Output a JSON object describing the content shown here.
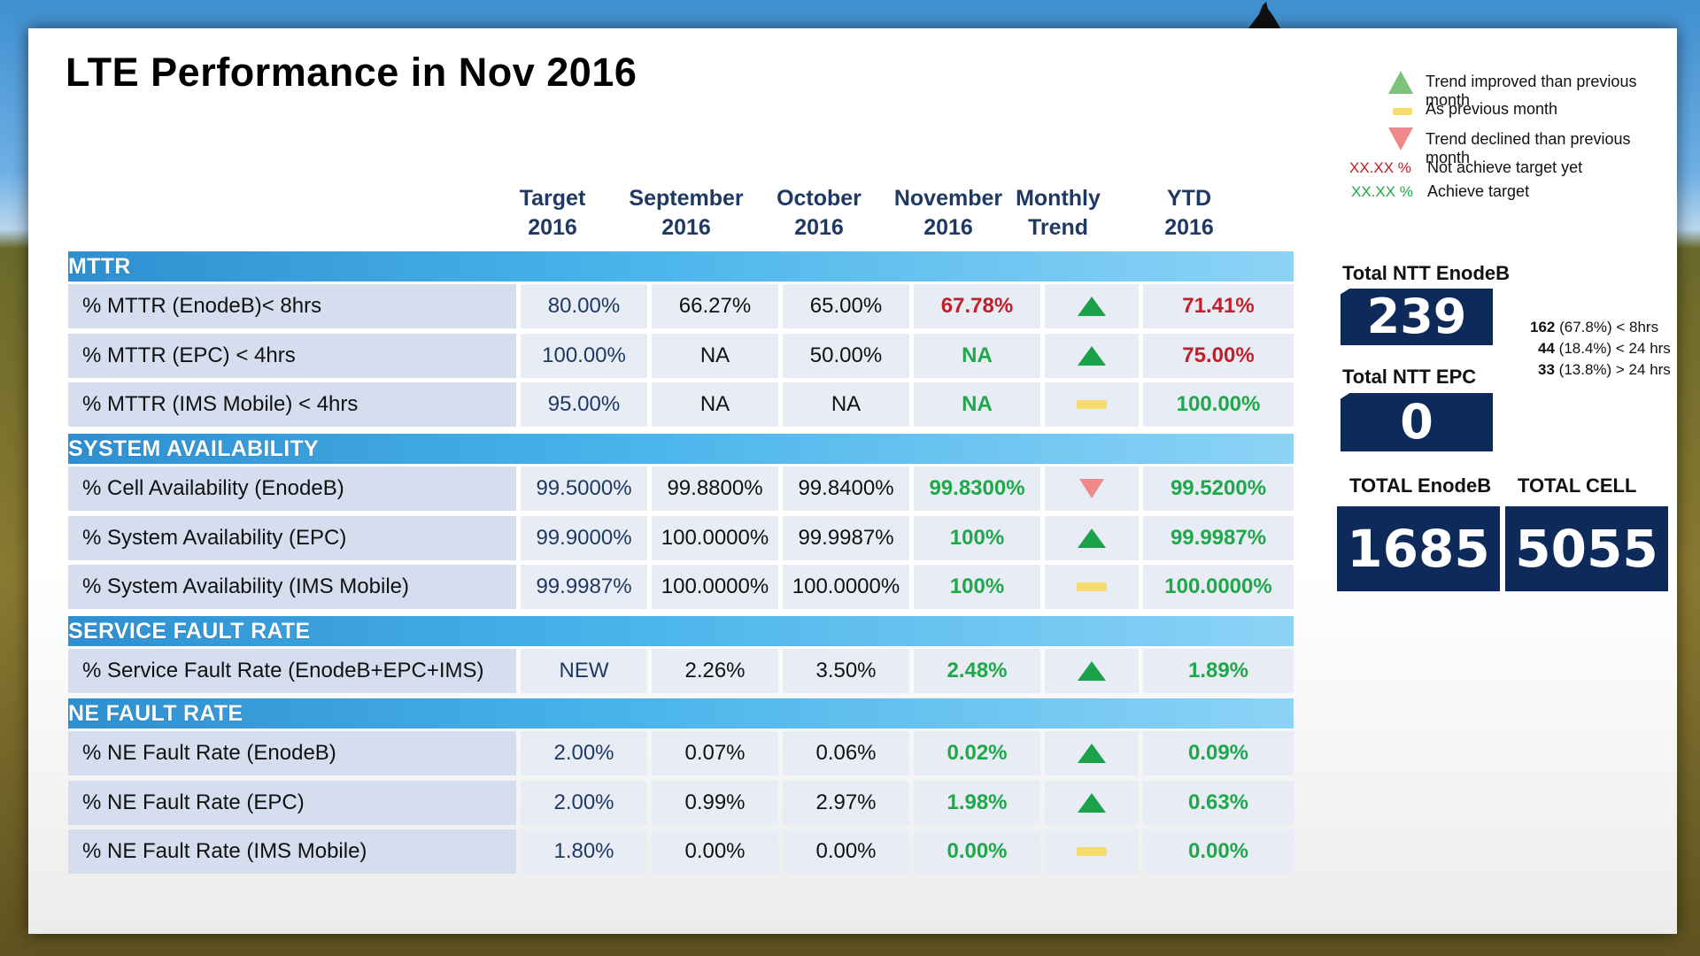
{
  "title": "LTE Performance in Nov 2016",
  "legend": {
    "improved": "Trend improved than previous month",
    "same": "As previous month",
    "declined": "Trend declined than previous month",
    "not_achieve_sample": "XX.XX %",
    "not_achieve": "Not achieve target yet",
    "achieve_sample": "XX.XX %",
    "achieve": "Achieve target"
  },
  "columns": {
    "target": [
      "Target",
      "2016"
    ],
    "sep": [
      "September",
      "2016"
    ],
    "oct": [
      "October",
      "2016"
    ],
    "nov": [
      "November",
      "2016"
    ],
    "trend": [
      "Monthly",
      "Trend"
    ],
    "ytd": [
      "YTD",
      "2016"
    ]
  },
  "sections": [
    {
      "name": "MTTR",
      "rows": [
        {
          "label": "% MTTR (EnodeB)< 8hrs",
          "target": "80.00%",
          "sep": "66.27%",
          "oct": "65.00%",
          "nov": "67.78%",
          "nov_status": "red",
          "trend": "up",
          "ytd": "71.41%",
          "ytd_status": "red"
        },
        {
          "label": "% MTTR (EPC) < 4hrs",
          "target": "100.00%",
          "sep": "NA",
          "oct": "50.00%",
          "nov": "NA",
          "nov_status": "green",
          "trend": "up",
          "ytd": "75.00%",
          "ytd_status": "red"
        },
        {
          "label": "% MTTR (IMS Mobile) < 4hrs",
          "target": "95.00%",
          "sep": "NA",
          "oct": "NA",
          "nov": "NA",
          "nov_status": "green",
          "trend": "same",
          "ytd": "100.00%",
          "ytd_status": "green"
        }
      ]
    },
    {
      "name": "SYSTEM AVAILABILITY",
      "rows": [
        {
          "label": "% Cell Availability (EnodeB)",
          "target": "99.5000%",
          "sep": "99.8800%",
          "oct": "99.8400%",
          "nov": "99.8300%",
          "nov_status": "green",
          "trend": "down",
          "ytd": "99.5200%",
          "ytd_status": "green"
        },
        {
          "label": "% System Availability (EPC)",
          "target": "99.9000%",
          "sep": "100.0000%",
          "oct": "99.9987%",
          "nov": "100%",
          "nov_status": "green",
          "trend": "up",
          "ytd": "99.9987%",
          "ytd_status": "green"
        },
        {
          "label": "% System Availability (IMS Mobile)",
          "target": "99.9987%",
          "sep": "100.0000%",
          "oct": "100.0000%",
          "nov": "100%",
          "nov_status": "green",
          "trend": "same",
          "ytd": "100.0000%",
          "ytd_status": "green"
        }
      ]
    },
    {
      "name": "SERVICE FAULT RATE",
      "rows": [
        {
          "label": "% Service Fault Rate (EnodeB+EPC+IMS)",
          "target": "NEW",
          "sep": "2.26%",
          "oct": "3.50%",
          "nov": "2.48%",
          "nov_status": "green",
          "trend": "up",
          "ytd": "1.89%",
          "ytd_status": "green"
        }
      ]
    },
    {
      "name": "NE FAULT RATE",
      "rows": [
        {
          "label": "% NE Fault Rate (EnodeB)",
          "target": "2.00%",
          "sep": "0.07%",
          "oct": "0.06%",
          "nov": "0.02%",
          "nov_status": "green",
          "trend": "up",
          "ytd": "0.09%",
          "ytd_status": "green"
        },
        {
          "label": "% NE Fault Rate (EPC)",
          "target": "2.00%",
          "sep": "0.99%",
          "oct": "2.97%",
          "nov": "1.98%",
          "nov_status": "green",
          "trend": "up",
          "ytd": "0.63%",
          "ytd_status": "green"
        },
        {
          "label": "% NE Fault Rate (IMS Mobile)",
          "target": "1.80%",
          "sep": "0.00%",
          "oct": "0.00%",
          "nov": "0.00%",
          "nov_status": "green",
          "trend": "same",
          "ytd": "0.00%",
          "ytd_status": "green"
        }
      ]
    }
  ],
  "kpi": {
    "ntt_enodeb_label": "Total NTT EnodeB",
    "ntt_enodeb_value": "239",
    "breakdown": [
      {
        "count": "162",
        "text": "(67.8%) < 8hrs"
      },
      {
        "count": "44",
        "text": "(18.4%) < 24 hrs"
      },
      {
        "count": "33",
        "text": "(13.8%) > 24 hrs"
      }
    ],
    "ntt_epc_label": "Total NTT EPC",
    "ntt_epc_value": "0",
    "total_enodeb_label": "TOTAL EnodeB",
    "total_enodeb_value": "1685",
    "total_cell_label": "TOTAL CELL",
    "total_cell_value": "5055"
  },
  "colors": {
    "red": "#c0202a",
    "green": "#1fa84a",
    "navy": "#0e2a5a",
    "header_text": "#1f3864",
    "trend_up": "#1aa24a",
    "trend_down": "#ef8a8a",
    "trend_same": "#f6dc6c"
  }
}
